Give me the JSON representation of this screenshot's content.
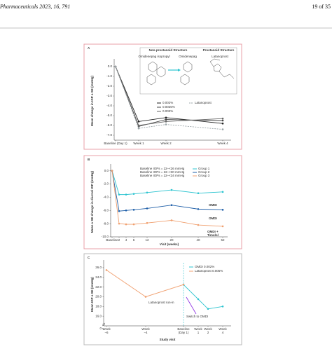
{
  "header": {
    "citation": "Pharmaceuticals 2023, 16, 791",
    "page": "19 of 35"
  },
  "chart_data": [
    {
      "type": "line",
      "panel": "A",
      "ylabel": "Mean change in IOP ± SE (mmHg)",
      "categories": [
        "Baseline (Day 1)",
        "Week 1",
        "Week 2",
        "Week 4"
      ],
      "ylim": [
        -7.5,
        0.5
      ],
      "yticks": [
        {
          "value": 0,
          "label": "0.0"
        },
        {
          "value": -1,
          "label": "-1.0"
        },
        {
          "value": -2,
          "label": "-2.0"
        },
        {
          "value": -3,
          "label": "-3.0"
        },
        {
          "value": -4,
          "label": "-4.0"
        },
        {
          "value": -5,
          "label": "-5.0"
        },
        {
          "value": -6,
          "label": "-6.0"
        },
        {
          "value": -7,
          "label": "-7.0"
        }
      ],
      "series": [
        {
          "name": "0.002%",
          "color": "#222222",
          "values": [
            0,
            -5.6,
            -5.2,
            -5.8
          ]
        },
        {
          "name": "0.0025%",
          "color": "#444444",
          "values": [
            0,
            -6.1,
            -5.4,
            -5.5
          ]
        },
        {
          "name": "0.003%",
          "color": "#666666",
          "values": [
            0,
            -6.0,
            -5.6,
            -5.3
          ]
        },
        {
          "name": "Latanoprost",
          "color": "#9aa4a8",
          "dashed": true,
          "values": [
            0,
            -6.3,
            -5.9,
            -6.4
          ]
        }
      ],
      "inset": {
        "headings": [
          "Non-prostanoid Structure",
          "Prostanoid Structure"
        ],
        "compounds": [
          "Omidenepag isopropyl",
          "Omidenepag",
          "Latanoprost"
        ]
      }
    },
    {
      "type": "line",
      "panel": "B",
      "ylabel": "Mean ± SE change in diurnal IOP (mmHg)",
      "xlabel": "Visit (weeks)",
      "categories": [
        "Baseline",
        "2",
        "4",
        "6",
        "12",
        "20",
        "40",
        "52"
      ],
      "ylim": [
        -10,
        0.6
      ],
      "yticks": [
        {
          "value": 0,
          "label": "0.0"
        },
        {
          "value": -2,
          "label": "-2.0"
        },
        {
          "value": -4,
          "label": "-4.0"
        },
        {
          "value": -6,
          "label": "-6.0"
        },
        {
          "value": -8,
          "label": "-8.0"
        },
        {
          "value": -10,
          "label": "-10.0"
        }
      ],
      "series": [
        {
          "name": "Group 1",
          "color": "#2cc4d0",
          "values": [
            0,
            -3.6,
            -3.6,
            -3.5,
            -3.3,
            -2.9,
            -3.4,
            -3.2
          ]
        },
        {
          "name": "Group 2",
          "color": "#1f5fa8",
          "values": [
            0,
            -6.1,
            -6.0,
            -5.9,
            -5.7,
            -5.2,
            -5.8,
            -5.9
          ]
        },
        {
          "name": "Group 3",
          "color": "#f0a070",
          "values": [
            0,
            -8.0,
            -8.1,
            -8.1,
            -7.9,
            -7.5,
            -8.2,
            -8.4
          ]
        }
      ],
      "notes": [
        "Baseline IOPs = 22–<26 mmHg",
        "Baseline IOPs = 22–<30 mmHg",
        "Baseline IOPs = 22–<34 mmHg"
      ],
      "annotations": [
        "OMDI",
        "OMDI",
        "OMDI +",
        "Timolol"
      ]
    },
    {
      "type": "line",
      "panel": "C",
      "ylabel": "Mean IOP ± SE (mmHg)",
      "xlabel": "Study visit",
      "categories": [
        "Week\n−6",
        "Week\n−4",
        "Baseline\n(Day 1)",
        "Week\n1",
        "Week\n2",
        "Week\n4"
      ],
      "ylim": [
        14,
        27
      ],
      "axis_break": true,
      "yticks": [
        0,
        {
          "value": 16,
          "label": "16.0"
        },
        {
          "value": 18,
          "label": "18.0"
        },
        {
          "value": 20,
          "label": "20.0"
        },
        {
          "value": 22,
          "label": "22.0"
        },
        {
          "value": 24,
          "label": "24.0"
        },
        {
          "value": 26,
          "label": "26.0"
        }
      ],
      "series": [
        {
          "name": "OMDI 0.002%",
          "color": "#2cc4d0",
          "values": [
            null,
            null,
            22.5,
            19.5,
            17.5,
            18.0
          ]
        },
        {
          "name": "Latanoprost 0.005%",
          "color": "#f0a070",
          "values": [
            25.5,
            20.0,
            22.5,
            null,
            null,
            null
          ]
        }
      ],
      "annotations": [
        "Latanoprost run-in",
        "Switch to OMDI"
      ]
    }
  ]
}
